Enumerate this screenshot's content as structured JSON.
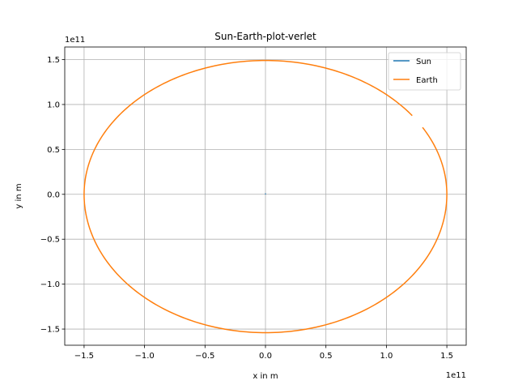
{
  "chart_data": {
    "type": "line",
    "title": "Sun-Earth-plot-verlet",
    "xlabel": "x in m",
    "ylabel": "y in m",
    "x_offset_label": "1e11",
    "y_offset_label": "1e11",
    "xlim": [
      -166000000000.0,
      166000000000.0
    ],
    "ylim": [
      -168000000000.0,
      164000000000.0
    ],
    "x_ticks": [
      -1.5,
      -1.0,
      -0.5,
      0.0,
      0.5,
      1.0,
      1.5
    ],
    "x_tick_labels": [
      "−1.5",
      "−1.0",
      "−0.5",
      "0.0",
      "0.5",
      "1.0",
      "1.5"
    ],
    "y_ticks": [
      -1.5,
      -1.0,
      -0.5,
      0.0,
      0.5,
      1.0,
      1.5
    ],
    "y_tick_labels": [
      "−1.5",
      "−1.0",
      "−0.5",
      "0.0",
      "0.5",
      "1.0",
      "1.5"
    ],
    "grid": true,
    "legend_position": "top-right",
    "series": [
      {
        "name": "Sun",
        "color": "#1f77b4",
        "x": [
          0,
          0
        ],
        "y": [
          0,
          100000000.0
        ]
      },
      {
        "name": "Earth",
        "color": "#ff7f0e",
        "orbit": {
          "semi_axis_x": 150000000000.0,
          "y_max": 149000000000.0,
          "y_min": -154000000000.0,
          "start_angle_deg": 36,
          "end_angle_deg": 390
        }
      }
    ]
  }
}
